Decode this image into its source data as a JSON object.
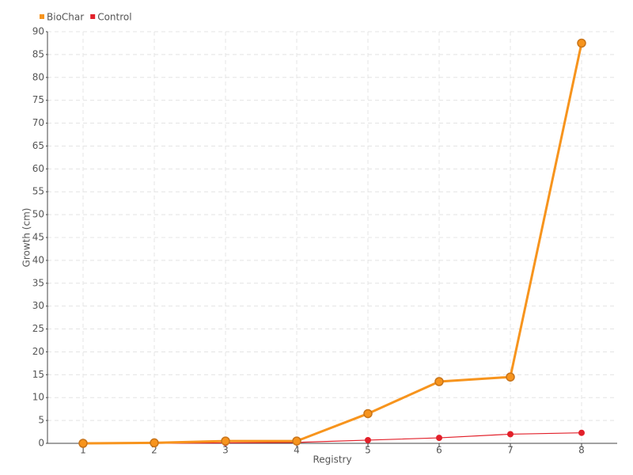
{
  "chart_data": {
    "type": "line",
    "x_label": "Registry",
    "y_label": "Growth (cm)",
    "categories": [
      "1",
      "2",
      "3",
      "4",
      "5",
      "6",
      "7",
      "8"
    ],
    "series": [
      {
        "name": "BioChar",
        "color": "#f7941d",
        "values": [
          0,
          0.1,
          0.5,
          0.5,
          6.5,
          13.5,
          14.5,
          87.5
        ]
      },
      {
        "name": "Control",
        "color": "#e2202a",
        "values": [
          0,
          0,
          0.1,
          0.2,
          0.7,
          1.2,
          2,
          2.3
        ]
      }
    ],
    "ylim": [
      0,
      90
    ],
    "yticks": [
      0,
      5,
      10,
      15,
      20,
      25,
      30,
      35,
      40,
      45,
      50,
      55,
      60,
      65,
      70,
      75,
      80,
      85,
      90
    ],
    "grid": true,
    "legend": "top-left"
  }
}
